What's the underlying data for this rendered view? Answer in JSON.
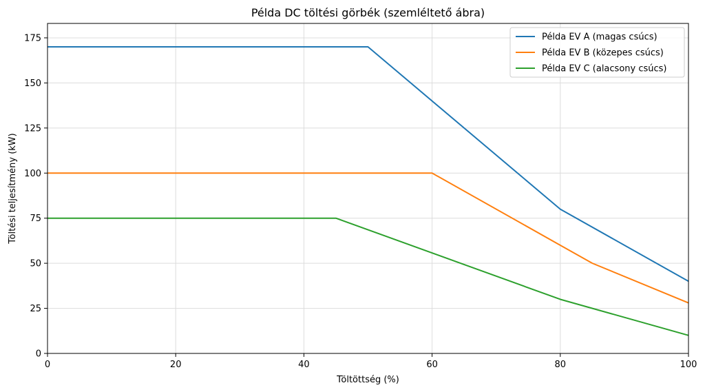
{
  "chart_data": {
    "type": "line",
    "title": "Példa DC töltési görbék (szemléltető ábra)",
    "xlabel": "Töltöttség (%)",
    "ylabel": "Töltési teljesítmény (kW)",
    "xlim": [
      0,
      100
    ],
    "ylim": [
      0,
      183
    ],
    "xticks": [
      0,
      20,
      40,
      60,
      80,
      100
    ],
    "yticks": [
      0,
      25,
      50,
      75,
      100,
      125,
      150,
      175
    ],
    "grid": true,
    "legend_position": "top-right",
    "series": [
      {
        "name": "Példa EV A (magas csúcs)",
        "color": "#1f77b4",
        "x": [
          0,
          50,
          80,
          100
        ],
        "y": [
          170,
          170,
          80,
          40
        ]
      },
      {
        "name": "Példa EV B (közepes csúcs)",
        "color": "#ff7f0e",
        "x": [
          0,
          60,
          80,
          85,
          100
        ],
        "y": [
          100,
          100,
          60,
          50,
          28
        ]
      },
      {
        "name": "Példa EV C (alacsony csúcs)",
        "color": "#2ca02c",
        "x": [
          0,
          45,
          80,
          100
        ],
        "y": [
          75,
          75,
          30,
          10
        ]
      }
    ]
  }
}
